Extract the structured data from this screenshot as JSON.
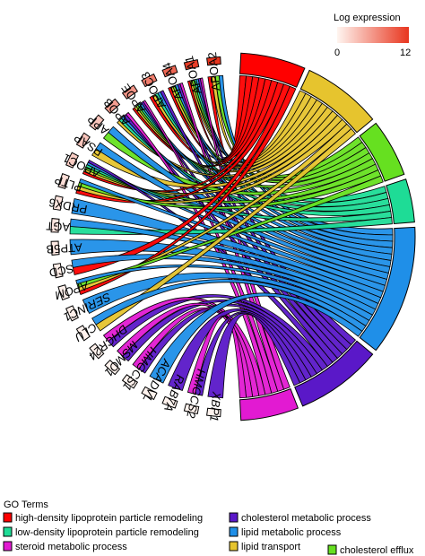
{
  "chart_data": {
    "type": "chord",
    "color_legend": {
      "title": "Log expression",
      "min": 0,
      "max": 12,
      "min_label": "0",
      "max_label": "12",
      "low_color": "#fff5f0",
      "high_color": "#e8361f"
    },
    "genes": [
      {
        "name": "APOA2",
        "italic": false,
        "log_expression": 12
      },
      {
        "name": "APOA1",
        "italic": false,
        "log_expression": 11.5
      },
      {
        "name": "APOA4",
        "italic": false,
        "log_expression": 9
      },
      {
        "name": "APOC3",
        "italic": false,
        "log_expression": 7.5
      },
      {
        "name": "APOE",
        "italic": false,
        "log_expression": 6
      },
      {
        "name": "APOB",
        "italic": false,
        "log_expression": 5.5
      },
      {
        "name": "APP",
        "italic": false,
        "log_expression": 3
      },
      {
        "name": "PSAP",
        "italic": false,
        "log_expression": 3
      },
      {
        "name": "APOC1",
        "italic": false,
        "log_expression": 2.5
      },
      {
        "name": "PLTP",
        "italic": false,
        "log_expression": 1.5
      },
      {
        "name": "PRDX6",
        "italic": false,
        "log_expression": 1
      },
      {
        "name": "AGT",
        "italic": false,
        "log_expression": 1
      },
      {
        "name": "ATP5B",
        "italic": false,
        "log_expression": 0.8
      },
      {
        "name": "SCD",
        "italic": false,
        "log_expression": 0.5
      },
      {
        "name": "APOM",
        "italic": true,
        "log_expression": 0.3
      },
      {
        "name": "SERINC1",
        "italic": true,
        "log_expression": 0.3
      },
      {
        "name": "CLU",
        "italic": true,
        "log_expression": 0.2
      },
      {
        "name": "DHCR24",
        "italic": true,
        "log_expression": 0.2
      },
      {
        "name": "MSMO1",
        "italic": true,
        "log_expression": 0.2
      },
      {
        "name": "HMGCS1",
        "italic": true,
        "log_expression": 0.2
      },
      {
        "name": "ACADVL",
        "italic": true,
        "log_expression": 0.1
      },
      {
        "name": "RAB7A",
        "italic": true,
        "log_expression": 0.1
      },
      {
        "name": "HMGCS2",
        "italic": true,
        "log_expression": 0.1
      },
      {
        "name": "XBP1",
        "italic": true,
        "log_expression": 0.1
      }
    ],
    "terms": [
      {
        "name": "high-density lipoprotein particle remodeling",
        "color": "#ff0000"
      },
      {
        "name": "lipid transport",
        "color": "#e6c42e"
      },
      {
        "name": "cholesterol efflux",
        "color": "#66e020"
      },
      {
        "name": "low-density lipoprotein particle remodeling",
        "color": "#1edc96"
      },
      {
        "name": "lipid metabolic process",
        "color": "#1f8fe8"
      },
      {
        "name": "cholesterol metabolic process",
        "color": "#5a18c8"
      },
      {
        "name": "steroid metabolic process",
        "color": "#e21ad2"
      }
    ],
    "legend": {
      "title": "GO Terms",
      "items": [
        {
          "name": "high-density lipoprotein particle remodeling",
          "color": "#ff0000"
        },
        {
          "name": "cholesterol metabolic process",
          "color": "#5a18c8"
        },
        {
          "name": "low-density lipoprotein particle remodeling",
          "color": "#1edc96"
        },
        {
          "name": "lipid metabolic process",
          "color": "#1f8fe8"
        },
        {
          "name": "steroid metabolic process",
          "color": "#e21ad2"
        },
        {
          "name": "lipid transport",
          "color": "#e6c42e"
        },
        {
          "name": "cholesterol efflux",
          "color": "#66e020"
        }
      ]
    },
    "links": [
      {
        "gene": "APOA2",
        "terms": [
          "high-density lipoprotein particle remodeling",
          "lipid transport",
          "cholesterol efflux",
          "lipid metabolic process"
        ]
      },
      {
        "gene": "APOA1",
        "terms": [
          "high-density lipoprotein particle remodeling",
          "lipid transport",
          "cholesterol efflux",
          "low-density lipoprotein particle remodeling",
          "lipid metabolic process",
          "cholesterol metabolic process",
          "steroid metabolic process"
        ]
      },
      {
        "gene": "APOA4",
        "terms": [
          "high-density lipoprotein particle remodeling",
          "lipid transport",
          "cholesterol efflux",
          "lipid metabolic process",
          "cholesterol metabolic process",
          "steroid metabolic process"
        ]
      },
      {
        "gene": "APOC3",
        "terms": [
          "high-density lipoprotein particle remodeling",
          "lipid transport",
          "low-density lipoprotein particle remodeling",
          "lipid metabolic process",
          "cholesterol metabolic process"
        ]
      },
      {
        "gene": "APOE",
        "terms": [
          "high-density lipoprotein particle remodeling",
          "lipid transport",
          "cholesterol efflux",
          "low-density lipoprotein particle remodeling",
          "lipid metabolic process",
          "cholesterol metabolic process",
          "steroid metabolic process"
        ]
      },
      {
        "gene": "APOB",
        "terms": [
          "lipid transport",
          "low-density lipoprotein particle remodeling",
          "lipid metabolic process",
          "cholesterol metabolic process",
          "steroid metabolic process"
        ]
      },
      {
        "gene": "APP",
        "terms": [
          "cholesterol efflux",
          "lipid metabolic process"
        ]
      },
      {
        "gene": "PSAP",
        "terms": [
          "lipid transport",
          "lipid metabolic process"
        ]
      },
      {
        "gene": "APOC1",
        "terms": [
          "high-density lipoprotein particle remodeling",
          "lipid transport",
          "cholesterol efflux",
          "low-density lipoprotein particle remodeling",
          "lipid metabolic process",
          "cholesterol metabolic process"
        ]
      },
      {
        "gene": "PLTP",
        "terms": [
          "high-density lipoprotein particle remodeling",
          "lipid transport",
          "cholesterol efflux",
          "lipid metabolic process"
        ]
      },
      {
        "gene": "PRDX6",
        "terms": [
          "lipid metabolic process"
        ]
      },
      {
        "gene": "AGT",
        "terms": [
          "low-density lipoprotein particle remodeling",
          "lipid metabolic process"
        ]
      },
      {
        "gene": "ATP5B",
        "terms": [
          "lipid metabolic process"
        ]
      },
      {
        "gene": "SCD",
        "terms": [
          "high-density lipoprotein particle remodeling",
          "lipid metabolic process"
        ]
      },
      {
        "gene": "APOM",
        "terms": [
          "high-density lipoprotein particle remodeling",
          "lipid transport",
          "cholesterol efflux",
          "lipid metabolic process"
        ]
      },
      {
        "gene": "SERINC1",
        "terms": [
          "lipid metabolic process"
        ]
      },
      {
        "gene": "CLU",
        "terms": [
          "lipid transport",
          "lipid metabolic process"
        ]
      },
      {
        "gene": "DHCR24",
        "terms": [
          "cholesterol metabolic process",
          "steroid metabolic process"
        ]
      },
      {
        "gene": "MSMO1",
        "terms": [
          "cholesterol metabolic process",
          "steroid metabolic process"
        ]
      },
      {
        "gene": "HMGCS1",
        "terms": [
          "cholesterol metabolic process",
          "steroid metabolic process"
        ]
      },
      {
        "gene": "ACADVL",
        "terms": [
          "lipid metabolic process"
        ]
      },
      {
        "gene": "RAB7A",
        "terms": [
          "cholesterol metabolic process"
        ]
      },
      {
        "gene": "HMGCS2",
        "terms": [
          "cholesterol metabolic process",
          "steroid metabolic process"
        ]
      },
      {
        "gene": "XBP1",
        "terms": [
          "cholesterol metabolic process"
        ]
      }
    ]
  }
}
